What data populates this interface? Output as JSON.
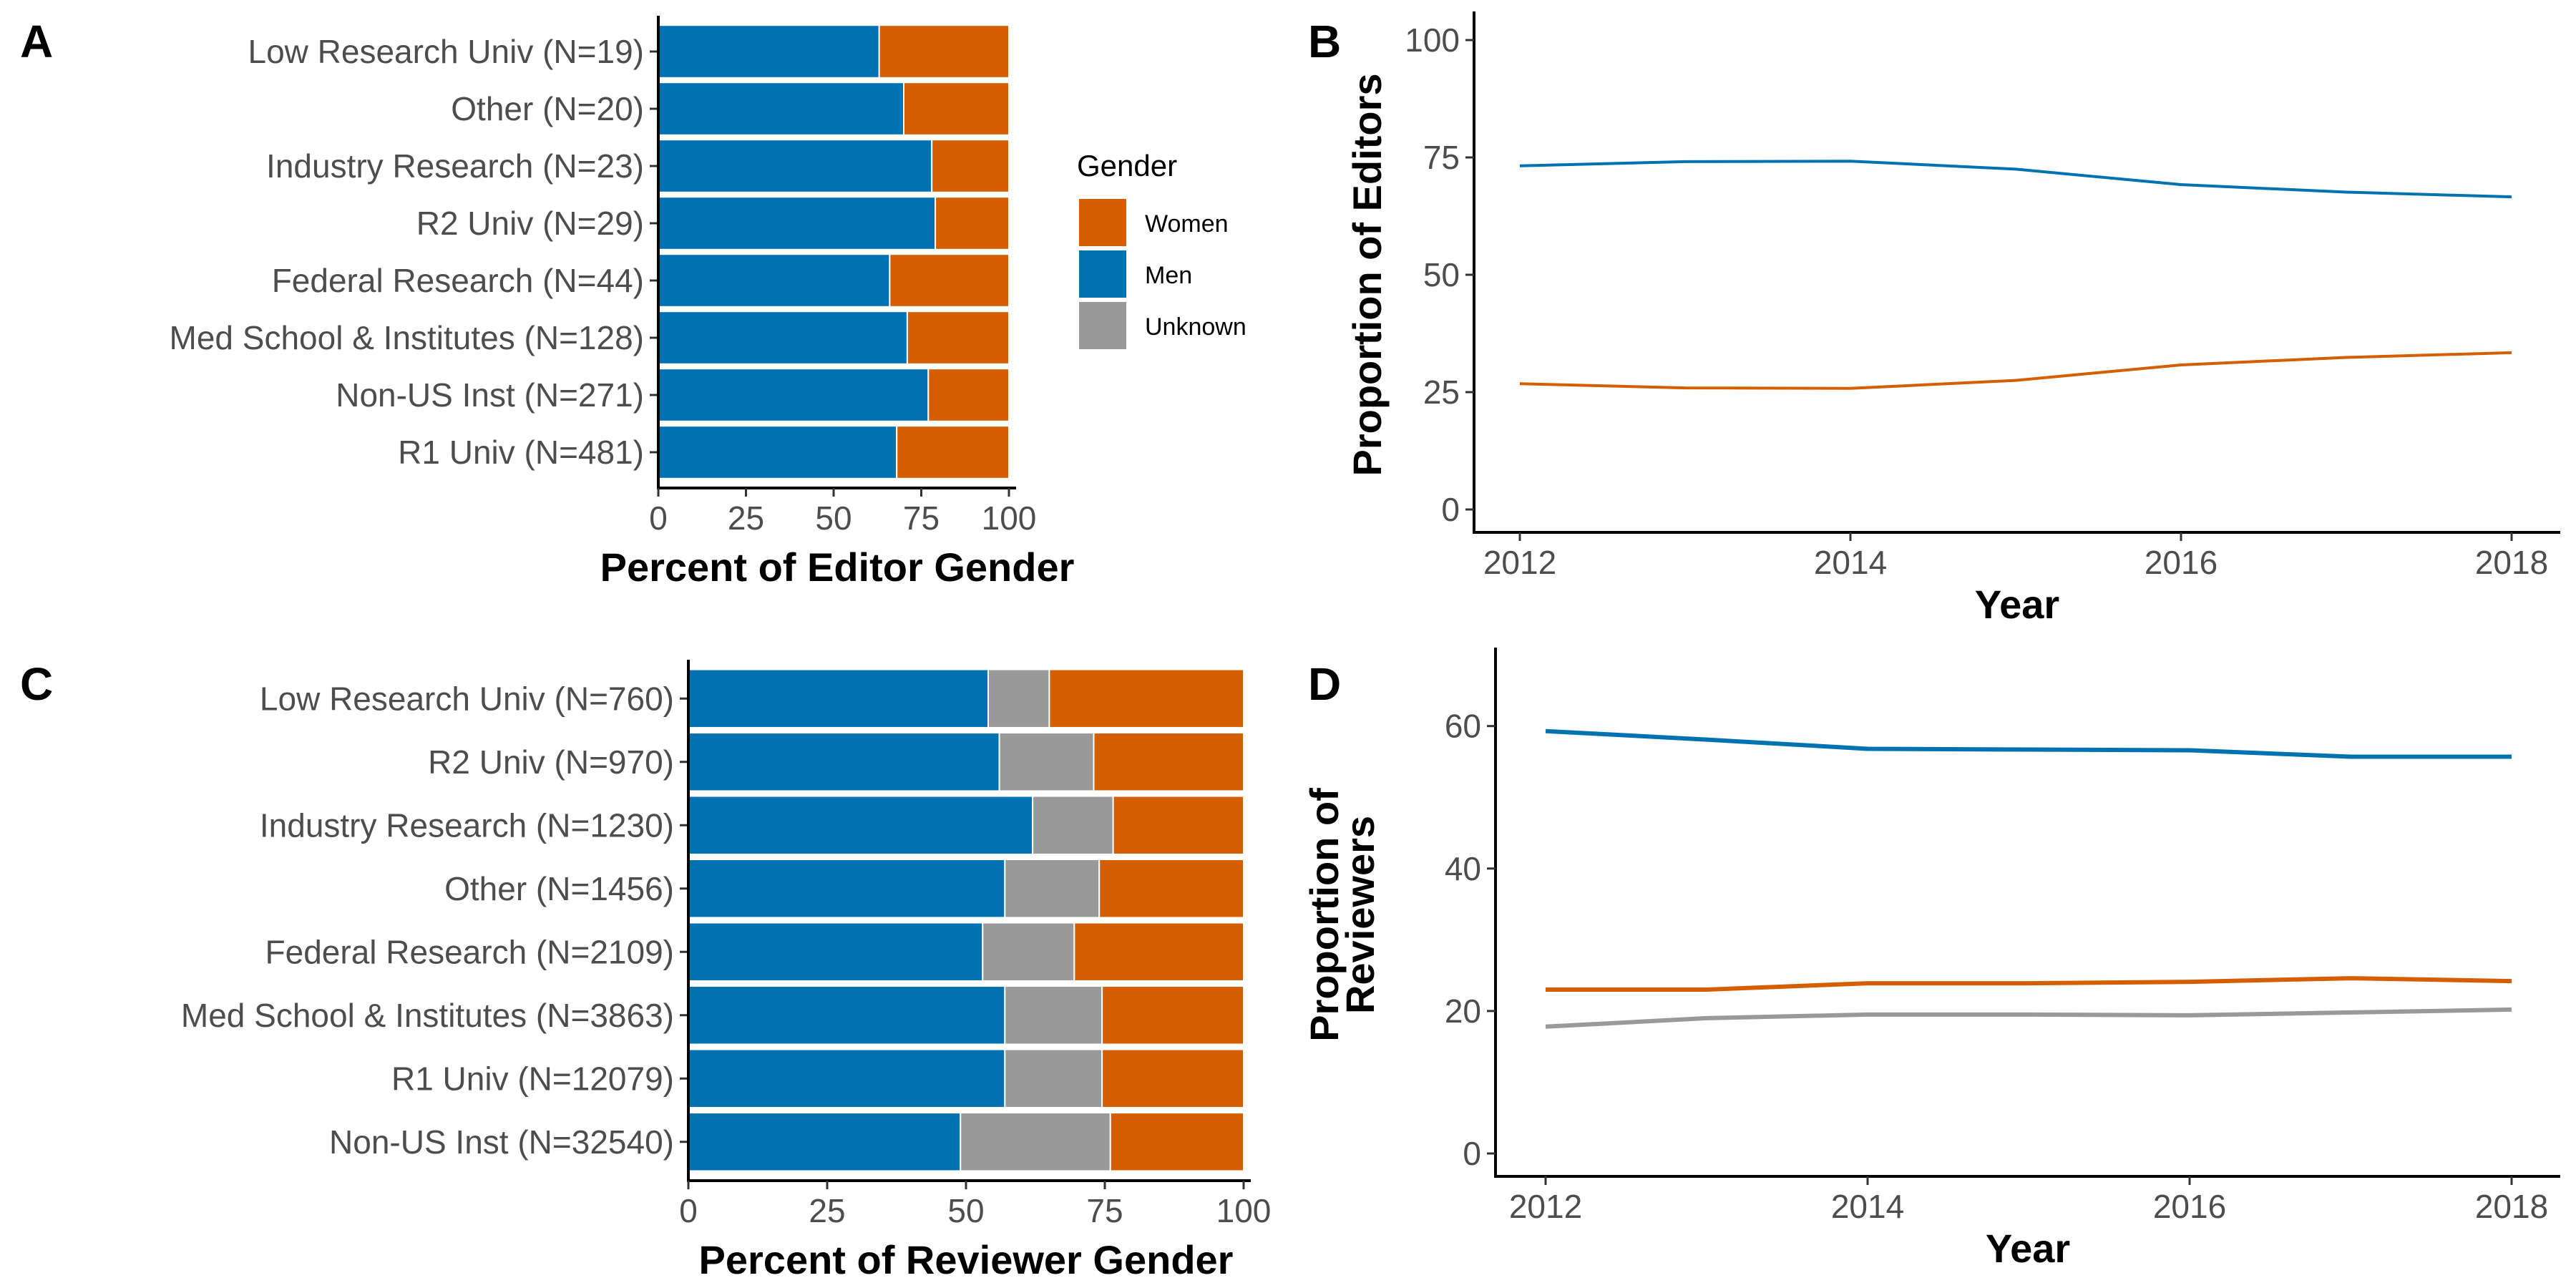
{
  "panels": {
    "A": "A",
    "B": "B",
    "C": "C",
    "D": "D"
  },
  "colors": {
    "Women": "#d55e00",
    "Men": "#0072b2",
    "Unknown": "#999999"
  },
  "legend": {
    "title": "Gender",
    "items": [
      "Women",
      "Men",
      "Unknown"
    ]
  },
  "chart_data": [
    {
      "panel": "A",
      "type": "bar",
      "orientation": "horizontal",
      "stacked": true,
      "xlabel": "Percent of Editor Gender",
      "ylabel": "",
      "xlim": [
        0,
        100
      ],
      "xticks": [
        0,
        25,
        50,
        75,
        100
      ],
      "categories": [
        "Low Research Univ (N=19)",
        "Other (N=20)",
        "Industry Research (N=23)",
        "R2 Univ (N=29)",
        "Federal Research (N=44)",
        "Med School & Institutes (N=128)",
        "Non-US Inst (N=271)",
        "R1 Univ (N=481)"
      ],
      "series": [
        {
          "name": "Men",
          "values": [
            63,
            70,
            78,
            79,
            66,
            71,
            77,
            68
          ]
        },
        {
          "name": "Unknown",
          "values": [
            0,
            0,
            0,
            0,
            0,
            0,
            0,
            0
          ]
        },
        {
          "name": "Women",
          "values": [
            37,
            30,
            22,
            21,
            34,
            29,
            23,
            32
          ]
        }
      ],
      "legend_position": "right"
    },
    {
      "panel": "B",
      "type": "line",
      "xlabel": "Year",
      "ylabel": "Proportion of Editors",
      "xlim": [
        2012,
        2018
      ],
      "ylim": [
        0,
        100
      ],
      "xticks": [
        2012,
        2014,
        2016,
        2018
      ],
      "yticks": [
        0,
        25,
        50,
        75,
        100
      ],
      "x": [
        2012,
        2013,
        2014,
        2015,
        2016,
        2017,
        2018
      ],
      "series": [
        {
          "name": "Men",
          "values": [
            73.2,
            74.1,
            74.2,
            72.5,
            69.2,
            67.6,
            66.6
          ]
        },
        {
          "name": "Women",
          "values": [
            26.8,
            25.9,
            25.8,
            27.5,
            30.8,
            32.4,
            33.4
          ]
        }
      ]
    },
    {
      "panel": "C",
      "type": "bar",
      "orientation": "horizontal",
      "stacked": true,
      "xlabel": "Percent of Reviewer Gender",
      "ylabel": "",
      "xlim": [
        0,
        100
      ],
      "xticks": [
        0,
        25,
        50,
        75,
        100
      ],
      "categories": [
        "Low Research Univ (N=760)",
        "R2 Univ (N=970)",
        "Industry Research (N=1230)",
        "Other (N=1456)",
        "Federal Research (N=2109)",
        "Med School & Institutes (N=3863)",
        "R1 Univ (N=12079)",
        "Non-US Inst (N=32540)"
      ],
      "series": [
        {
          "name": "Men",
          "values": [
            54,
            56,
            62,
            57,
            53,
            57,
            57,
            49
          ]
        },
        {
          "name": "Unknown",
          "values": [
            11,
            17,
            14.5,
            17,
            16.5,
            17.5,
            17.5,
            27
          ]
        },
        {
          "name": "Women",
          "values": [
            35,
            27,
            23.5,
            26,
            30.5,
            25.5,
            25.5,
            24
          ]
        }
      ]
    },
    {
      "panel": "D",
      "type": "line",
      "xlabel": "Year",
      "ylabel": "Proportion of\nReviewers",
      "ylabel_lines": [
        "Proportion of",
        "Reviewers"
      ],
      "xlim": [
        2012,
        2018
      ],
      "ylim": [
        0,
        67
      ],
      "xticks": [
        2012,
        2014,
        2016,
        2018
      ],
      "yticks": [
        0,
        20,
        40,
        60
      ],
      "x": [
        2012,
        2013,
        2014,
        2015,
        2016,
        2017,
        2018
      ],
      "series": [
        {
          "name": "Men",
          "values": [
            59.3,
            58.1,
            56.8,
            56.7,
            56.6,
            55.7,
            55.7
          ]
        },
        {
          "name": "Women",
          "values": [
            23.0,
            23.0,
            23.9,
            23.9,
            24.1,
            24.6,
            24.2
          ]
        },
        {
          "name": "Unknown",
          "values": [
            17.8,
            19.0,
            19.5,
            19.5,
            19.4,
            19.8,
            20.2
          ]
        }
      ]
    }
  ]
}
